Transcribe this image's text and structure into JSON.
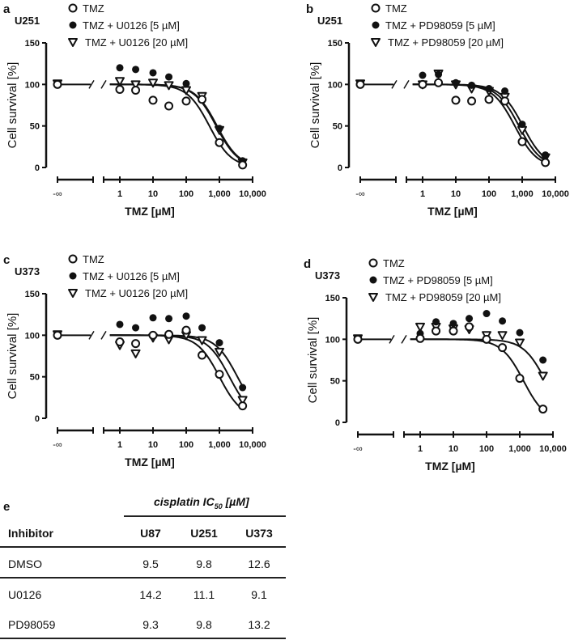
{
  "chart_data": [
    {
      "type": "scatter",
      "panel": "a",
      "cell_line": "U251",
      "xlabel": "TMZ [µM]",
      "ylabel": "Cell survival [%]",
      "xscale": "log",
      "xlim": [
        1,
        10000
      ],
      "ylim": [
        0,
        150
      ],
      "yticks": [
        "0",
        "50",
        "100",
        "150"
      ],
      "xticks": [
        "1",
        "10",
        "100",
        "1,000",
        "10,000"
      ],
      "control_tick": "-∞",
      "x": [
        1,
        3,
        10,
        30,
        100,
        300,
        1000,
        5000
      ],
      "legend_position": "top",
      "series": [
        {
          "name": "TMZ",
          "marker": "open-circle",
          "control": 100,
          "values": [
            94,
            93,
            81,
            74,
            80,
            82,
            30,
            3
          ],
          "fit_ic50": 500
        },
        {
          "name": "TMZ + U0126 [5 µM]",
          "marker": "filled-circle",
          "control": 100,
          "values": [
            120,
            118,
            114,
            109,
            101,
            82,
            47,
            8
          ],
          "fit_ic50": 850
        },
        {
          "name": "TMZ + U0126 [20 µM]",
          "marker": "open-triangle",
          "control": 101,
          "values": [
            104,
            100,
            102,
            99,
            93,
            86,
            45,
            6
          ],
          "fit_ic50": 800
        }
      ]
    },
    {
      "type": "scatter",
      "panel": "b",
      "cell_line": "U251",
      "xlabel": "TMZ [µM]",
      "ylabel": "Cell survival [%]",
      "xscale": "log",
      "xlim": [
        1,
        10000
      ],
      "ylim": [
        0,
        150
      ],
      "yticks": [
        "0",
        "50",
        "100",
        "150"
      ],
      "xticks": [
        "1",
        "10",
        "100",
        "1,000",
        "10,000"
      ],
      "control_tick": "-∞",
      "x": [
        1,
        3,
        10,
        30,
        100,
        300,
        1000,
        5000
      ],
      "legend_position": "top",
      "series": [
        {
          "name": "TMZ",
          "marker": "open-circle",
          "control": 100,
          "values": [
            100,
            102,
            81,
            80,
            82,
            80,
            31,
            6
          ],
          "fit_ic50": 600
        },
        {
          "name": "TMZ + PD98059 [5 µM]",
          "marker": "filled-circle",
          "control": 100,
          "values": [
            111,
            112,
            102,
            99,
            95,
            92,
            52,
            15
          ],
          "fit_ic50": 1050
        },
        {
          "name": "TMZ + PD98059 [20 µM]",
          "marker": "open-triangle",
          "control": 101,
          "values": [
            100,
            113,
            100,
            95,
            92,
            85,
            45,
            12
          ],
          "fit_ic50": 800
        }
      ]
    },
    {
      "type": "scatter",
      "panel": "c",
      "cell_line": "U373",
      "xlabel": "TMZ [µM]",
      "ylabel": "Cell survival [%]",
      "xscale": "log",
      "xlim": [
        1,
        10000
      ],
      "ylim": [
        0,
        150
      ],
      "yticks": [
        "0",
        "50",
        "100",
        "150"
      ],
      "xticks": [
        "1",
        "10",
        "100",
        "1,000",
        "10,000"
      ],
      "control_tick": "-∞",
      "x": [
        1,
        3,
        10,
        30,
        100,
        300,
        1000,
        5000
      ],
      "legend_position": "top",
      "series": [
        {
          "name": "TMZ",
          "marker": "open-circle",
          "control": 100,
          "values": [
            92,
            90,
            100,
            101,
            106,
            76,
            53,
            15
          ],
          "fit_ic50": 1000
        },
        {
          "name": "TMZ + U0126 [5 µM]",
          "marker": "filled-circle",
          "control": 100,
          "values": [
            113,
            109,
            121,
            120,
            123,
            109,
            91,
            37
          ],
          "fit_ic50": 3500
        },
        {
          "name": "TMZ + U0126 [20 µM]",
          "marker": "open-triangle",
          "control": 101,
          "values": [
            88,
            78,
            97,
            95,
            100,
            94,
            80,
            22
          ],
          "fit_ic50": 2000
        }
      ]
    },
    {
      "type": "scatter",
      "panel": "d",
      "cell_line": "U373",
      "xlabel": "TMZ [µM]",
      "ylabel": "Cell survival [%]",
      "xscale": "log",
      "xlim": [
        1,
        10000
      ],
      "ylim": [
        0,
        150
      ],
      "yticks": [
        "0",
        "50",
        "100",
        "150"
      ],
      "xticks": [
        "1",
        "10",
        "100",
        "1,000",
        "10,000"
      ],
      "control_tick": "-∞",
      "x": [
        1,
        3,
        10,
        30,
        100,
        300,
        1000,
        5000
      ],
      "legend_position": "top",
      "series": [
        {
          "name": "TMZ",
          "marker": "open-circle",
          "control": 100,
          "values": [
            101,
            110,
            110,
            115,
            100,
            90,
            53,
            16
          ],
          "fit_ic50": 1300
        },
        {
          "name": "TMZ + PD98059 [5 µM]",
          "marker": "filled-circle",
          "control": 100,
          "values": [
            107,
            121,
            119,
            125,
            131,
            122,
            108,
            75
          ],
          "fit_ic50": null
        },
        {
          "name": "TMZ + PD98059 [20 µM]",
          "marker": "open-triangle",
          "control": 101,
          "values": [
            115,
            115,
            113,
            112,
            105,
            105,
            96,
            56
          ],
          "fit_ic50": 6000
        }
      ]
    }
  ],
  "table": {
    "panel": "e",
    "title": "cisplatin IC",
    "title_sub": "50",
    "title_unit": " [µM]",
    "row_header": "Inhibitor",
    "columns": [
      "U87",
      "U251",
      "U373"
    ],
    "rows": [
      {
        "label": "DMSO",
        "values": [
          "9.5",
          "9.8",
          "12.6"
        ]
      },
      {
        "label": "U0126",
        "values": [
          "14.2",
          "11.1",
          "9.1"
        ]
      },
      {
        "label": "PD98059",
        "values": [
          "9.3",
          "9.8",
          "13.2"
        ]
      }
    ]
  }
}
